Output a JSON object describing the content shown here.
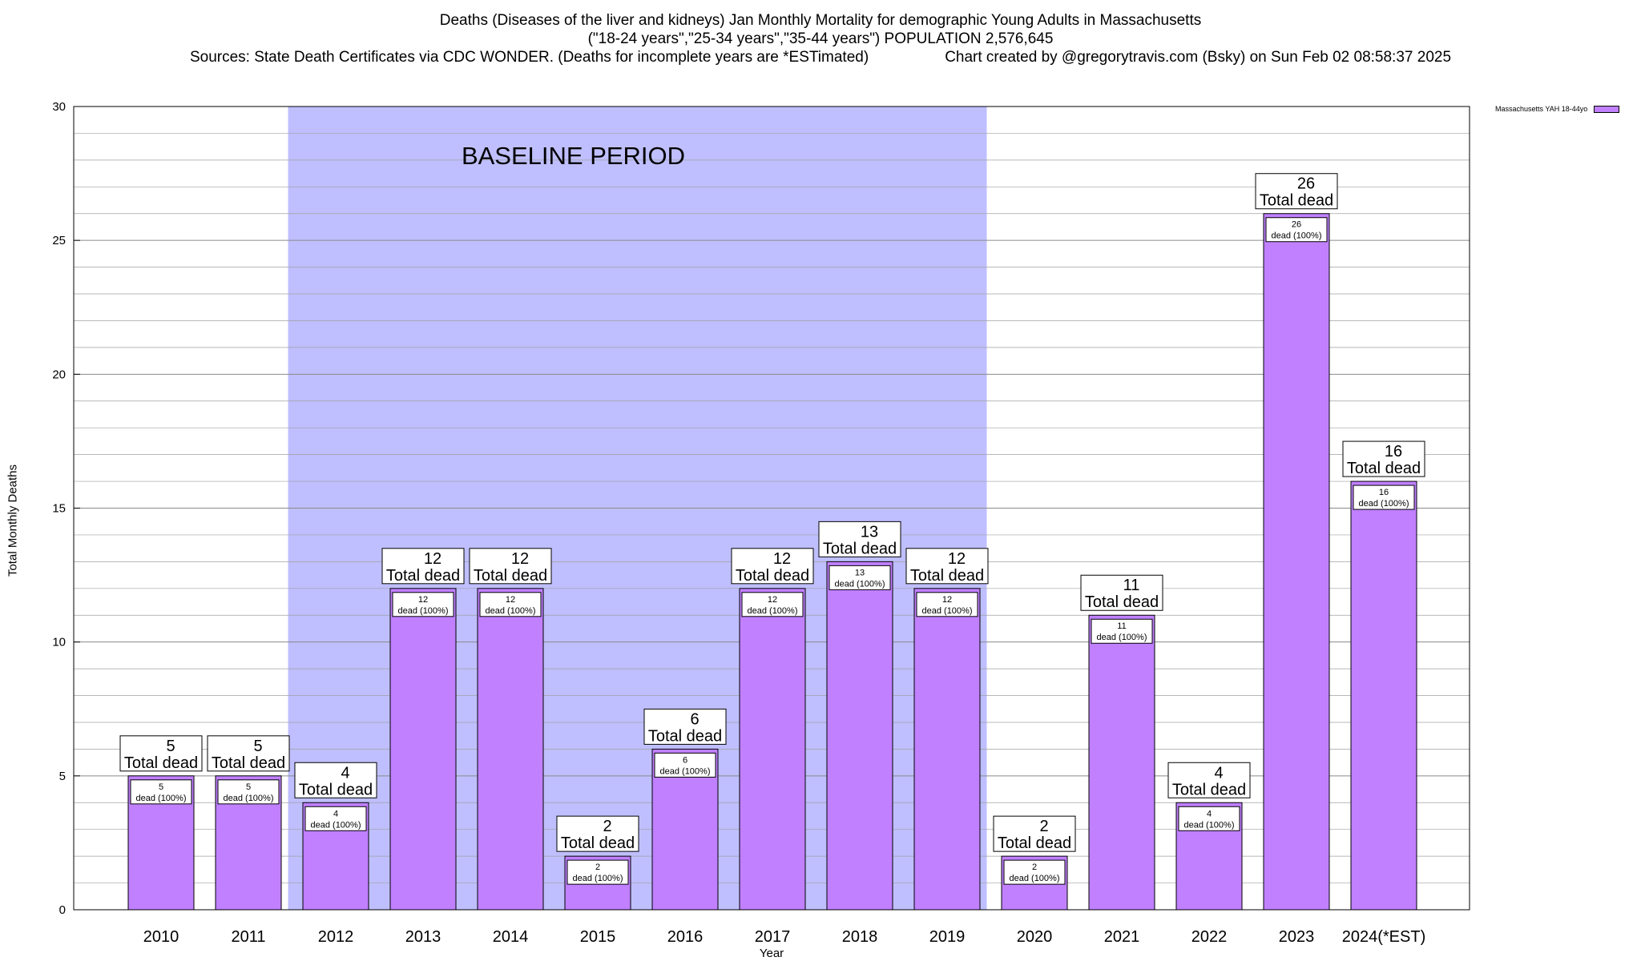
{
  "title": {
    "line1": "Deaths (Diseases of the liver and kidneys) Jan Monthly Mortality for demographic Young Adults in Massachusetts",
    "line2": "(\"18-24 years\",\"25-34 years\",\"35-44 years\") POPULATION 2,576,645",
    "line3_left": "Sources: State Death Certificates via CDC WONDER. (Deaths for incomplete years are *ESTimated)",
    "line3_right": "Chart created by @gregorytravis.com (Bsky) on Sun Feb 02 08:58:37 2025"
  },
  "colors": {
    "bar": "#c080ff",
    "baseline_band": "#bfbfff",
    "grid": "#a0a0a0"
  },
  "chart_data": {
    "type": "bar",
    "title": "Deaths (Diseases of the liver and kidneys) Jan Monthly Mortality for demographic Young Adults in Massachusetts",
    "xlabel": "Year",
    "ylabel": "Total Monthly Deaths",
    "ylim": [
      0,
      30
    ],
    "yticks": [
      0,
      5,
      10,
      15,
      20,
      25,
      30
    ],
    "grid": true,
    "minor_grid_step": 1,
    "legend_position": "top-right, outside plot",
    "categories": [
      "2010",
      "2011",
      "2012",
      "2013",
      "2014",
      "2015",
      "2016",
      "2017",
      "2018",
      "2019",
      "2020",
      "2021",
      "2022",
      "2023",
      "2024(*EST)"
    ],
    "series": [
      {
        "name": "Massachusetts YAH 18-44yo",
        "values": [
          5,
          5,
          4,
          12,
          12,
          2,
          6,
          12,
          13,
          12,
          2,
          11,
          4,
          26,
          16
        ]
      }
    ],
    "bar_label_top_suffix": "Total dead",
    "bar_label_inner_suffix": "dead (100%)",
    "annotations": [
      {
        "text": "BASELINE PERIOD",
        "type": "shaded_band",
        "x_from": "2012",
        "x_to": "2019"
      }
    ]
  }
}
